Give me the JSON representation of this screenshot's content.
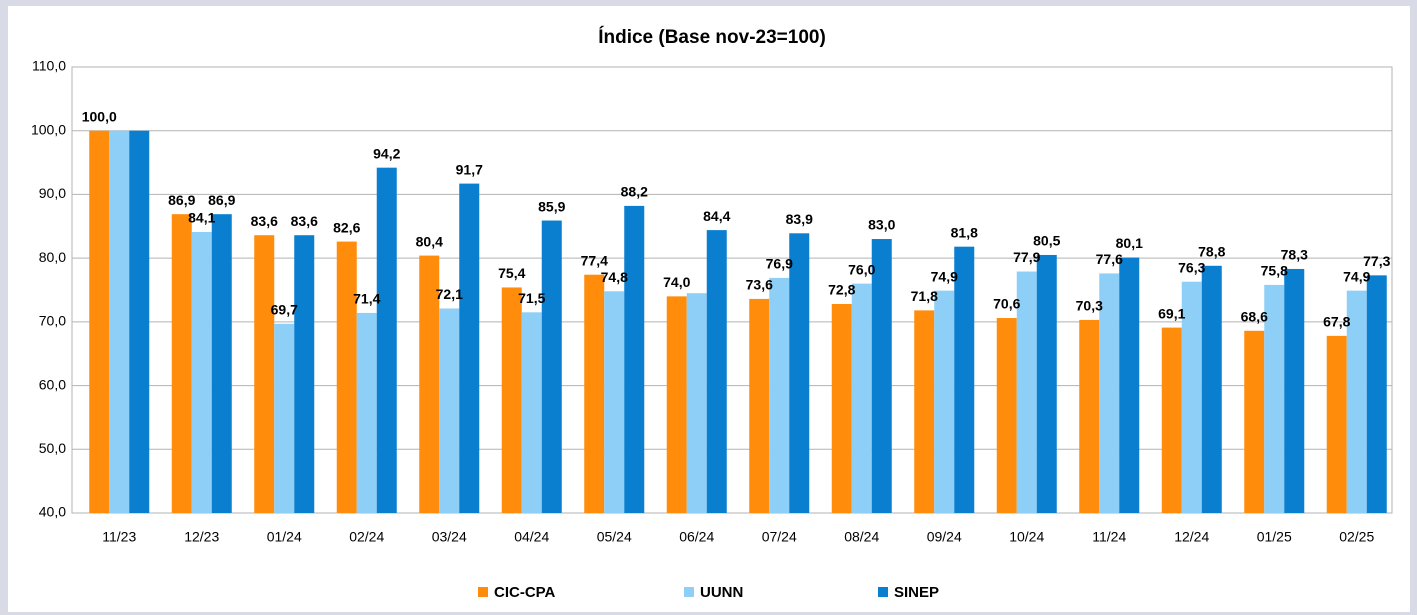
{
  "chart_data": {
    "type": "bar",
    "title": "Índice (Base nov-23=100)",
    "categories": [
      "11/23",
      "12/23",
      "01/24",
      "02/24",
      "03/24",
      "04/24",
      "05/24",
      "06/24",
      "07/24",
      "08/24",
      "09/24",
      "10/24",
      "11/24",
      "12/24",
      "01/25",
      "02/25"
    ],
    "series": [
      {
        "name": "CIC-CPA",
        "color": "#ff8c0a",
        "values": [
          100.0,
          86.9,
          83.6,
          82.6,
          80.4,
          75.4,
          77.4,
          74.0,
          73.6,
          72.8,
          71.8,
          70.6,
          70.3,
          69.1,
          68.6,
          67.8
        ],
        "value_labels": [
          "100,0",
          "86,9",
          "83,6",
          "82,6",
          "80,4",
          "75,4",
          "77,4",
          "74,0",
          "73,6",
          "72,8",
          "71,8",
          "70,6",
          "70,3",
          "69,1",
          "68,6",
          "67,8"
        ]
      },
      {
        "name": "UUNN",
        "color": "#8ecff7",
        "values": [
          100.0,
          84.1,
          69.7,
          71.4,
          72.1,
          71.5,
          74.8,
          74.5,
          76.9,
          76.0,
          74.9,
          77.9,
          77.6,
          76.3,
          75.8,
          74.9
        ],
        "value_labels": [
          null,
          "84,1",
          "69,7",
          "71,4",
          "72,1",
          "71,5",
          "74,8",
          null,
          "76,9",
          "76,0",
          "74,9",
          "77,9",
          "77,6",
          "76,3",
          "75,8",
          "74,9"
        ]
      },
      {
        "name": "SINEP",
        "color": "#0a7fd0",
        "values": [
          100.0,
          86.9,
          83.6,
          94.2,
          91.7,
          85.9,
          88.2,
          84.4,
          83.9,
          83.0,
          81.8,
          80.5,
          80.1,
          78.8,
          78.3,
          77.3
        ],
        "value_labels": [
          null,
          "86,9",
          "83,6",
          "94,2",
          "91,7",
          "85,9",
          "88,2",
          "84,4",
          "83,9",
          "83,0",
          "81,8",
          "80,5",
          "80,1",
          "78,8",
          "78,3",
          "77,3"
        ]
      }
    ],
    "ylim": [
      40,
      110
    ],
    "yticks": [
      {
        "value": 40,
        "label": "40,0"
      },
      {
        "value": 50,
        "label": "50,0"
      },
      {
        "value": 60,
        "label": "60,0"
      },
      {
        "value": 70,
        "label": "70,0"
      },
      {
        "value": 80,
        "label": "80,0"
      },
      {
        "value": 90,
        "label": "90,0"
      },
      {
        "value": 100,
        "label": "100,0"
      },
      {
        "value": 110,
        "label": "110,0"
      }
    ],
    "grid": true,
    "legend": "bottom"
  }
}
